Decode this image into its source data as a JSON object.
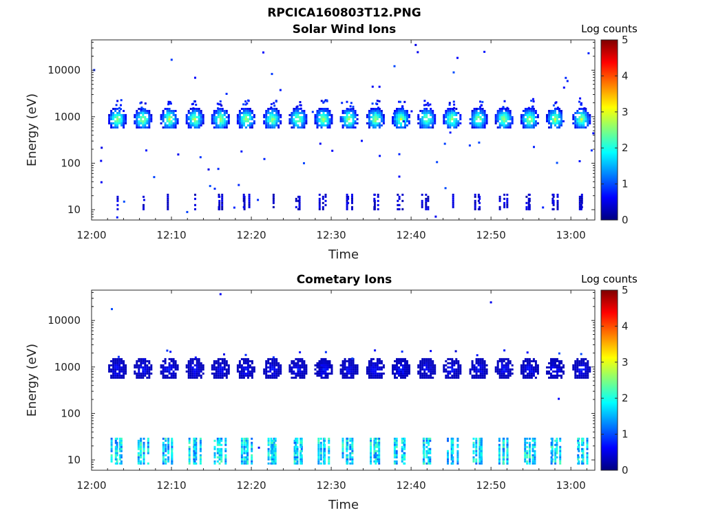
{
  "figure_title": "RPCICA160803T12.PNG",
  "colormap": [
    "#00007f",
    "#0000ff",
    "#007fff",
    "#00ffff",
    "#7fff7f",
    "#ffff00",
    "#ff7f00",
    "#ff0000",
    "#7f0000"
  ],
  "chart_data": [
    {
      "type": "heatmap",
      "title": "Solar Wind Ions",
      "xlabel": "Time",
      "ylabel": "Energy (eV)",
      "yscale": "log",
      "ylim": [
        6,
        45000
      ],
      "x_tick_labels": [
        "12:00",
        "12:10",
        "12:20",
        "12:30",
        "12:40",
        "12:50",
        "13:00"
      ],
      "y_tick_labels": [
        "10",
        "100",
        "1000",
        "10000"
      ],
      "colorbar": {
        "title": "Log counts",
        "range": [
          0,
          5
        ],
        "tick_labels": [
          "0",
          "1",
          "2",
          "3",
          "4",
          "5"
        ]
      },
      "time_range_minutes": [
        0,
        63
      ],
      "scan_times_minutes": [
        3.2,
        6.4,
        9.7,
        12.9,
        16.1,
        19.3,
        22.6,
        25.8,
        29.0,
        32.2,
        35.5,
        38.7,
        41.9,
        45.1,
        48.4,
        51.6,
        54.8,
        58.0,
        61.3
      ],
      "peak_energy_eV": 900,
      "peak_log_counts": 3.0,
      "low_energy_band_eV": [
        10,
        22
      ],
      "low_energy_log_counts": 0.4
    },
    {
      "type": "heatmap",
      "title": "Cometary Ions",
      "xlabel": "Time",
      "ylabel": "Energy (eV)",
      "yscale": "log",
      "ylim": [
        6,
        45000
      ],
      "x_tick_labels": [
        "12:00",
        "12:10",
        "12:20",
        "12:30",
        "12:40",
        "12:50",
        "13:00"
      ],
      "y_tick_labels": [
        "10",
        "100",
        "1000",
        "10000"
      ],
      "colorbar": {
        "title": "Log counts",
        "range": [
          0,
          5
        ],
        "tick_labels": [
          "0",
          "1",
          "2",
          "3",
          "4",
          "5"
        ]
      },
      "time_range_minutes": [
        0,
        63
      ],
      "scan_times_minutes": [
        3.2,
        6.4,
        9.7,
        12.9,
        16.1,
        19.3,
        22.6,
        25.8,
        29.0,
        32.2,
        35.5,
        38.7,
        41.9,
        45.1,
        48.4,
        51.6,
        54.8,
        58.0,
        61.3
      ],
      "peak_energy_eV": 900,
      "peak_log_counts": 0.9,
      "low_energy_band_eV": [
        8,
        30
      ],
      "low_energy_log_counts": 1.7
    }
  ]
}
